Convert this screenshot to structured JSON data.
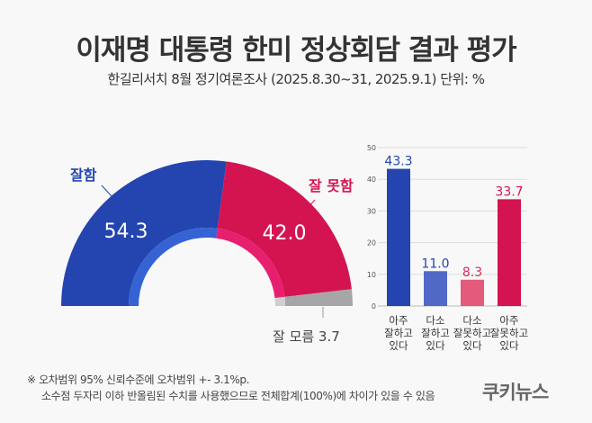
{
  "title": "이재명 대통령 한미 정상회담 결과 평가",
  "subtitle": "한길리서치 8월 정기여론조사 (2025.8.30~31, 2025.9.1) 단위: %",
  "chart_data": [
    {
      "type": "pie",
      "shape": "half-donut",
      "slices": [
        {
          "label": "잘함",
          "value": 54.3,
          "value_label": "54.3",
          "color": "#2444b0",
          "inner_color": "#3563d4"
        },
        {
          "label": "잘 못함",
          "value": 42.0,
          "value_label": "42.0",
          "color": "#d41450",
          "inner_color": "#e6206f"
        },
        {
          "label": "잘 모름",
          "value": 3.7,
          "value_label": "잘 모름 3.7",
          "color": "#a6a6a8",
          "inner_color": "#cfcfd1"
        }
      ]
    },
    {
      "type": "bar",
      "categories": [
        "아주\n잘하고\n있다",
        "다소\n잘하고\n있다",
        "다소\n잘못하고\n있다",
        "아주\n잘못하고\n있다"
      ],
      "values": [
        43.3,
        11.0,
        8.3,
        33.7
      ],
      "value_labels": [
        "43.3",
        "11.0",
        "8.3",
        "33.7"
      ],
      "colors": [
        "#2444b0",
        "#5068c6",
        "#e45a7c",
        "#d41450"
      ],
      "yticks": [
        "0",
        "10",
        "20",
        "30",
        "40",
        "50"
      ],
      "ylim": [
        0,
        50
      ],
      "grid": true
    }
  ],
  "notes": [
    "※ 오차범위 95% 신뢰수준에 오차범위 +- 3.1%p.",
    "소수점 두자리 이하 반올림된 수치를 사용했으므로 전체합계(100%)에 차이가 있을 수 있음"
  ],
  "logo": "쿠키뉴스"
}
